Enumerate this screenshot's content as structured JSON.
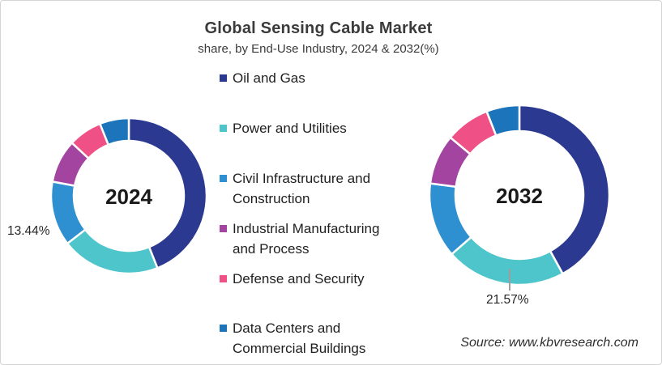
{
  "header": {
    "title": "Global Sensing Cable Market",
    "subtitle": "share, by End-Use Industry, 2024 & 2032(%)"
  },
  "legend": {
    "position": "center-between-charts",
    "items": [
      {
        "label": "Oil and Gas",
        "color": "#2B3990"
      },
      {
        "label": "Power and Utilities",
        "color": "#4EC5CB"
      },
      {
        "label": "Civil Infrastructure and Construction",
        "color": "#2E90D1"
      },
      {
        "label": "Industrial Manufacturing and Process",
        "color": "#A344A0"
      },
      {
        "label": "Defense and Security",
        "color": "#EF5187"
      },
      {
        "label": "Data Centers and Commercial Buildings",
        "color": "#1C75BB"
      }
    ]
  },
  "chart_data": [
    {
      "type": "pie",
      "donut": true,
      "title": "2024",
      "categories": [
        "Oil and Gas",
        "Power and Utilities",
        "Civil Infrastructure and Construction",
        "Industrial Manufacturing and Process",
        "Defense and Security",
        "Data Centers and Commercial Buildings"
      ],
      "values": [
        44,
        20.5,
        13.44,
        9,
        7,
        6.06
      ],
      "colors": [
        "#2B3990",
        "#4EC5CB",
        "#2E90D1",
        "#A344A0",
        "#EF5187",
        "#1C75BB"
      ],
      "start_angle_deg": 0,
      "callouts": [
        {
          "category": "Civil Infrastructure and Construction",
          "text": "13.44%"
        }
      ]
    },
    {
      "type": "pie",
      "donut": true,
      "title": "2032",
      "categories": [
        "Oil and Gas",
        "Power and Utilities",
        "Civil Infrastructure and Construction",
        "Industrial Manufacturing and Process",
        "Defense and Security",
        "Data Centers and Commercial Buildings"
      ],
      "values": [
        42,
        21.57,
        13.5,
        9,
        8,
        5.93
      ],
      "colors": [
        "#2B3990",
        "#4EC5CB",
        "#2E90D1",
        "#A344A0",
        "#EF5187",
        "#1C75BB"
      ],
      "start_angle_deg": 0,
      "callouts": [
        {
          "category": "Power and Utilities",
          "text": "21.57%"
        }
      ]
    }
  ],
  "source": "Source: www.kbvresearch.com"
}
